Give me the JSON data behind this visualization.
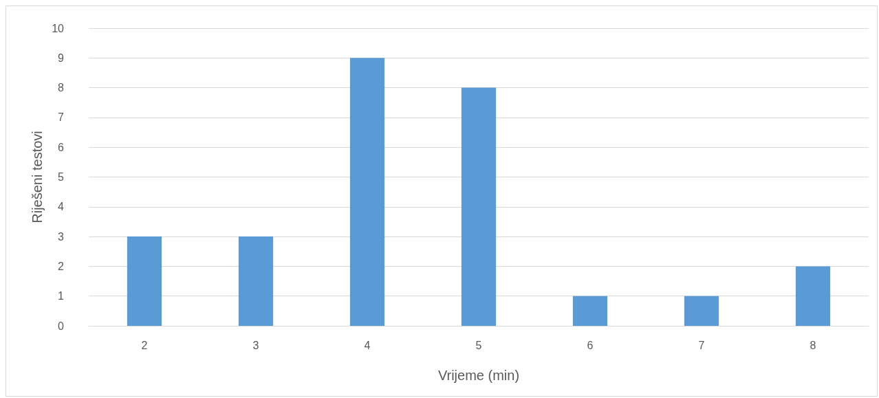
{
  "chart_data": {
    "type": "bar",
    "xlabel": "Vrijeme (min)",
    "ylabel": "Riješeni testovi",
    "categories": [
      "2",
      "3",
      "4",
      "5",
      "6",
      "7",
      "8"
    ],
    "values": [
      3,
      3,
      9,
      8,
      1,
      1,
      2
    ],
    "color": "#5b9bd5",
    "ylim": [
      0,
      10
    ],
    "yticks": [
      0,
      1,
      2,
      3,
      4,
      5,
      6,
      7,
      8,
      9,
      10
    ],
    "grid": "y"
  }
}
